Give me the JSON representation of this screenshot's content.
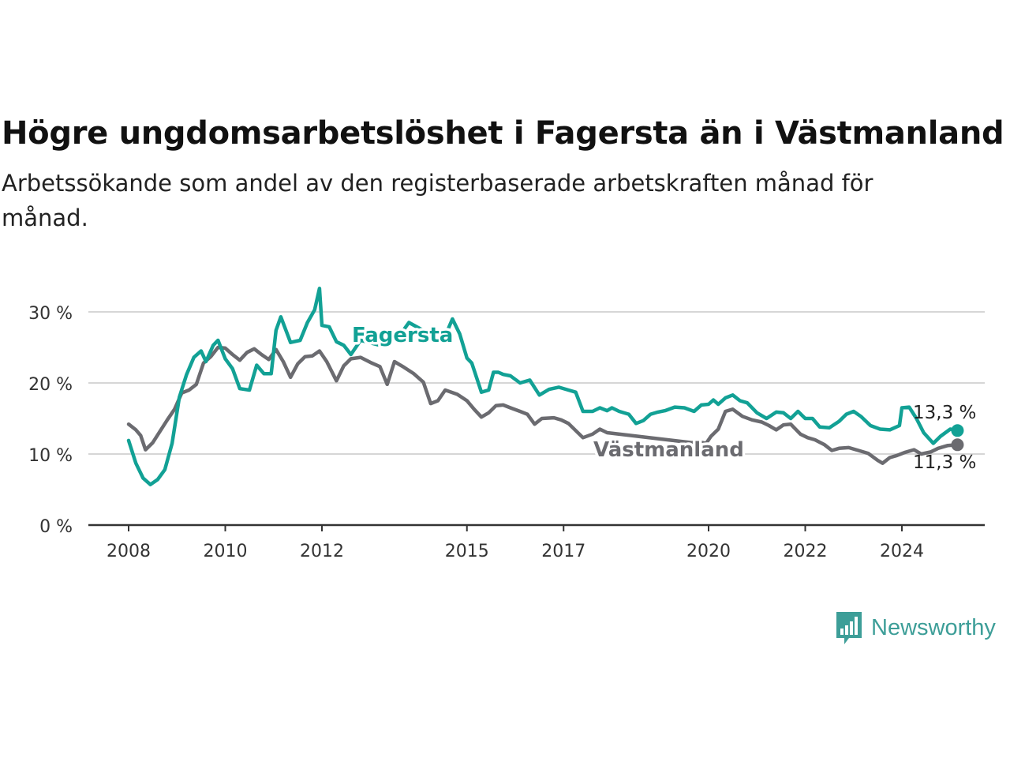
{
  "title": "Högre ungdomsarbetslöshet i Fagersta än i Västmanland",
  "subtitle": "Arbetssökande som andel av den registerbaserade arbetskraften månad för månad.",
  "brand": {
    "name": "Newsworthy",
    "icon": "newsworthy-logo-icon"
  },
  "colors": {
    "fagersta": "#12a195",
    "vastmanland": "#6b6b70",
    "grid": "#d6d6d6",
    "axis": "#333333"
  },
  "chart_data": {
    "type": "line",
    "title": "Högre ungdomsarbetslöshet i Fagersta än i Västmanland",
    "subtitle": "Arbetssökande som andel av den registerbaserade arbetskraften månad för månad.",
    "y_ticks": [
      "0 %",
      "10 %",
      "20 %",
      "30 %"
    ],
    "y_tick_values": [
      0,
      10,
      20,
      30
    ],
    "ylim": [
      0,
      35
    ],
    "x_ticks": [
      "2008",
      "2010",
      "2012",
      "2015",
      "2017",
      "2020",
      "2022",
      "2024"
    ],
    "x_tick_values": [
      2008,
      2010,
      2012,
      2015,
      2017,
      2020,
      2022,
      2024
    ],
    "xlim": [
      2007.2,
      2025.6
    ],
    "grid": "horizontal",
    "series": [
      {
        "name": "Fagersta",
        "color": "#12a195",
        "end_label": "13,3 %",
        "end_value": 13.3,
        "points": [
          [
            2008.0,
            11.9
          ],
          [
            2008.15,
            8.7
          ],
          [
            2008.3,
            6.6
          ],
          [
            2008.45,
            5.7
          ],
          [
            2008.6,
            6.4
          ],
          [
            2008.75,
            7.8
          ],
          [
            2008.9,
            11.5
          ],
          [
            2009.05,
            18.0
          ],
          [
            2009.2,
            21.2
          ],
          [
            2009.35,
            23.6
          ],
          [
            2009.5,
            24.5
          ],
          [
            2009.6,
            23.0
          ],
          [
            2009.75,
            25.3
          ],
          [
            2009.85,
            26.0
          ],
          [
            2010.0,
            23.4
          ],
          [
            2010.15,
            22.0
          ],
          [
            2010.3,
            19.2
          ],
          [
            2010.5,
            19.0
          ],
          [
            2010.65,
            22.5
          ],
          [
            2010.8,
            21.3
          ],
          [
            2010.95,
            21.3
          ],
          [
            2011.05,
            27.4
          ],
          [
            2011.15,
            29.3
          ],
          [
            2011.35,
            25.7
          ],
          [
            2011.55,
            26.0
          ],
          [
            2011.7,
            28.5
          ],
          [
            2011.85,
            30.3
          ],
          [
            2011.95,
            33.3
          ],
          [
            2012.0,
            28.1
          ],
          [
            2012.15,
            27.9
          ],
          [
            2012.3,
            25.8
          ],
          [
            2012.45,
            25.3
          ],
          [
            2012.6,
            24.0
          ],
          [
            2012.8,
            26.0
          ],
          [
            2013.2,
            25.3
          ],
          [
            2013.6,
            26.6
          ],
          [
            2013.8,
            28.5
          ],
          [
            2014.2,
            27.0
          ],
          [
            2014.6,
            27.4
          ],
          [
            2014.7,
            29.0
          ],
          [
            2014.85,
            26.9
          ],
          [
            2015.0,
            23.5
          ],
          [
            2015.1,
            22.8
          ],
          [
            2015.3,
            18.7
          ],
          [
            2015.45,
            19.0
          ],
          [
            2015.55,
            21.5
          ],
          [
            2015.65,
            21.5
          ],
          [
            2015.75,
            21.2
          ],
          [
            2015.9,
            21.0
          ],
          [
            2016.1,
            20.0
          ],
          [
            2016.3,
            20.4
          ],
          [
            2016.5,
            18.3
          ],
          [
            2016.7,
            19.1
          ],
          [
            2016.9,
            19.4
          ],
          [
            2017.1,
            19.0
          ],
          [
            2017.25,
            18.7
          ],
          [
            2017.4,
            16.0
          ],
          [
            2017.6,
            16.0
          ],
          [
            2017.75,
            16.5
          ],
          [
            2017.9,
            16.1
          ],
          [
            2018.0,
            16.5
          ],
          [
            2018.15,
            16.0
          ],
          [
            2018.35,
            15.6
          ],
          [
            2018.5,
            14.3
          ],
          [
            2018.65,
            14.7
          ],
          [
            2018.8,
            15.6
          ],
          [
            2018.95,
            15.9
          ],
          [
            2019.1,
            16.1
          ],
          [
            2019.3,
            16.6
          ],
          [
            2019.5,
            16.5
          ],
          [
            2019.7,
            16.0
          ],
          [
            2019.85,
            16.9
          ],
          [
            2020.0,
            17.0
          ],
          [
            2020.1,
            17.6
          ],
          [
            2020.2,
            17.0
          ],
          [
            2020.35,
            17.9
          ],
          [
            2020.5,
            18.3
          ],
          [
            2020.65,
            17.5
          ],
          [
            2020.8,
            17.2
          ],
          [
            2021.0,
            15.8
          ],
          [
            2021.2,
            15.0
          ],
          [
            2021.4,
            15.9
          ],
          [
            2021.55,
            15.8
          ],
          [
            2021.7,
            15.0
          ],
          [
            2021.85,
            16.0
          ],
          [
            2022.0,
            15.0
          ],
          [
            2022.15,
            15.0
          ],
          [
            2022.3,
            13.8
          ],
          [
            2022.5,
            13.7
          ],
          [
            2022.7,
            14.6
          ],
          [
            2022.85,
            15.6
          ],
          [
            2023.0,
            16.0
          ],
          [
            2023.15,
            15.3
          ],
          [
            2023.35,
            14.0
          ],
          [
            2023.55,
            13.5
          ],
          [
            2023.75,
            13.4
          ],
          [
            2023.85,
            13.7
          ],
          [
            2023.95,
            14.0
          ],
          [
            2024.0,
            16.5
          ],
          [
            2024.15,
            16.6
          ],
          [
            2024.3,
            15.0
          ],
          [
            2024.45,
            13.0
          ],
          [
            2024.65,
            11.5
          ],
          [
            2024.8,
            12.5
          ],
          [
            2025.0,
            13.5
          ],
          [
            2025.15,
            13.3
          ]
        ]
      },
      {
        "name": "Västmanland",
        "color": "#6b6b70",
        "end_label": "11,3 %",
        "end_value": 11.3,
        "points": [
          [
            2008.0,
            14.2
          ],
          [
            2008.15,
            13.4
          ],
          [
            2008.25,
            12.6
          ],
          [
            2008.35,
            10.6
          ],
          [
            2008.5,
            11.6
          ],
          [
            2008.65,
            13.2
          ],
          [
            2008.8,
            14.8
          ],
          [
            2008.95,
            16.3
          ],
          [
            2009.1,
            18.6
          ],
          [
            2009.25,
            19.0
          ],
          [
            2009.4,
            19.8
          ],
          [
            2009.55,
            22.8
          ],
          [
            2009.7,
            23.7
          ],
          [
            2009.85,
            25.0
          ],
          [
            2010.0,
            24.9
          ],
          [
            2010.15,
            24.0
          ],
          [
            2010.3,
            23.2
          ],
          [
            2010.45,
            24.3
          ],
          [
            2010.6,
            24.8
          ],
          [
            2010.75,
            24.0
          ],
          [
            2010.9,
            23.3
          ],
          [
            2011.05,
            24.7
          ],
          [
            2011.2,
            23.0
          ],
          [
            2011.35,
            20.8
          ],
          [
            2011.5,
            22.7
          ],
          [
            2011.65,
            23.7
          ],
          [
            2011.8,
            23.8
          ],
          [
            2011.95,
            24.5
          ],
          [
            2012.1,
            23.0
          ],
          [
            2012.3,
            20.3
          ],
          [
            2012.45,
            22.4
          ],
          [
            2012.6,
            23.4
          ],
          [
            2012.8,
            23.6
          ],
          [
            2013.0,
            22.9
          ],
          [
            2013.2,
            22.3
          ],
          [
            2013.35,
            19.8
          ],
          [
            2013.5,
            23.0
          ],
          [
            2013.7,
            22.2
          ],
          [
            2013.9,
            21.3
          ],
          [
            2014.1,
            20.1
          ],
          [
            2014.25,
            17.1
          ],
          [
            2014.4,
            17.5
          ],
          [
            2014.55,
            19.0
          ],
          [
            2014.8,
            18.4
          ],
          [
            2015.0,
            17.5
          ],
          [
            2015.15,
            16.3
          ],
          [
            2015.3,
            15.2
          ],
          [
            2015.45,
            15.8
          ],
          [
            2015.6,
            16.8
          ],
          [
            2015.75,
            16.9
          ],
          [
            2015.9,
            16.5
          ],
          [
            2016.1,
            16.0
          ],
          [
            2016.25,
            15.6
          ],
          [
            2016.4,
            14.2
          ],
          [
            2016.55,
            15.0
          ],
          [
            2016.8,
            15.1
          ],
          [
            2016.95,
            14.8
          ],
          [
            2017.1,
            14.3
          ],
          [
            2017.25,
            13.3
          ],
          [
            2017.4,
            12.3
          ],
          [
            2017.6,
            12.8
          ],
          [
            2017.75,
            13.5
          ],
          [
            2017.9,
            13.0
          ],
          [
            2019.65,
            11.6
          ],
          [
            2019.8,
            11.7
          ],
          [
            2019.95,
            11.5
          ],
          [
            2020.05,
            12.5
          ],
          [
            2020.2,
            13.5
          ],
          [
            2020.35,
            16.0
          ],
          [
            2020.5,
            16.3
          ],
          [
            2020.7,
            15.3
          ],
          [
            2020.9,
            14.8
          ],
          [
            2021.1,
            14.5
          ],
          [
            2021.25,
            14.0
          ],
          [
            2021.4,
            13.4
          ],
          [
            2021.55,
            14.1
          ],
          [
            2021.7,
            14.2
          ],
          [
            2021.9,
            12.8
          ],
          [
            2022.05,
            12.3
          ],
          [
            2022.2,
            12.0
          ],
          [
            2022.4,
            11.3
          ],
          [
            2022.55,
            10.5
          ],
          [
            2022.7,
            10.8
          ],
          [
            2022.9,
            10.9
          ],
          [
            2023.1,
            10.5
          ],
          [
            2023.3,
            10.1
          ],
          [
            2023.5,
            9.1
          ],
          [
            2023.6,
            8.7
          ],
          [
            2023.75,
            9.5
          ],
          [
            2023.9,
            9.8
          ],
          [
            2024.05,
            10.2
          ],
          [
            2024.25,
            10.6
          ],
          [
            2024.4,
            10.0
          ],
          [
            2024.6,
            10.3
          ],
          [
            2024.75,
            10.8
          ],
          [
            2024.95,
            11.2
          ],
          [
            2025.15,
            11.3
          ]
        ]
      }
    ],
    "series_labels": [
      "Fagersta",
      "Västmanland"
    ]
  }
}
